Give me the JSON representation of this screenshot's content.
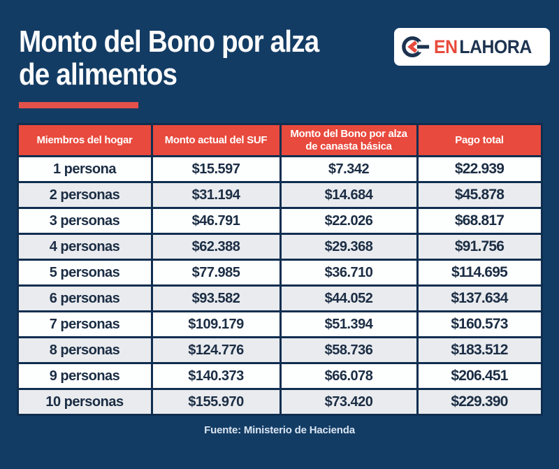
{
  "logo": {
    "icon": "enlahora-circle-back-arrow-icon",
    "en": "EN",
    "lahora": "LAHORA"
  },
  "header": {
    "title_line1": "Monto del Bono por alza",
    "title_line2": "de alimentos"
  },
  "table": {
    "headers": [
      "Miembros del hogar",
      "Monto actual del SUF",
      "Monto del Bono por alza de canasta básica",
      "Pago total"
    ],
    "rows": [
      [
        "1 persona",
        "$15.597",
        "$7.342",
        "$22.939"
      ],
      [
        "2 personas",
        "$31.194",
        "$14.684",
        "$45.878"
      ],
      [
        "3 personas",
        "$46.791",
        "$22.026",
        "$68.817"
      ],
      [
        "4 personas",
        "$62.388",
        "$29.368",
        "$91.756"
      ],
      [
        "5 personas",
        "$77.985",
        "$36.710",
        "$114.695"
      ],
      [
        "6 personas",
        "$93.582",
        "$44.052",
        "$137.634"
      ],
      [
        "7 personas",
        "$109.179",
        "$51.394",
        "$160.573"
      ],
      [
        "8 personas",
        "$124.776",
        "$58.736",
        "$183.512"
      ],
      [
        "9 personas",
        "$140.373",
        "$66.078",
        "$206.451"
      ],
      [
        "10 personas",
        "$155.970",
        "$73.420",
        "$229.390"
      ]
    ]
  },
  "footer": {
    "source": "Fuente: Ministerio de Hacienda"
  },
  "colors": {
    "background_navy": "#133c64",
    "border_navy": "#0f2e50",
    "accent_red": "#e84a3d",
    "row_white": "#fdfefe",
    "row_gray": "#e9ebee",
    "cell_text": "#1b2d44",
    "logo_navy": "#1d3350",
    "footer_text": "#d9e5f2"
  }
}
